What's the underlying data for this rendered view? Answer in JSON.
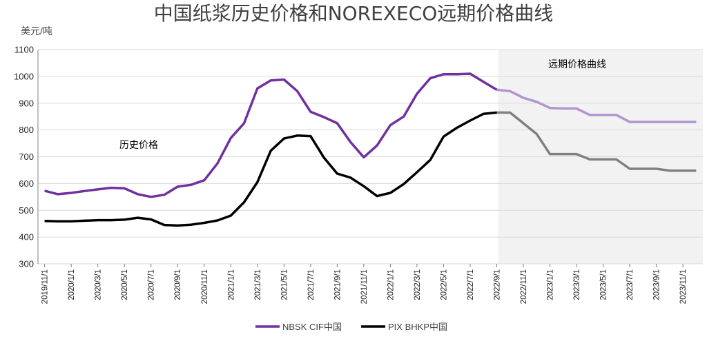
{
  "colors": {
    "nbsk_hist": "#7030A0",
    "nbsk_fwd": "#B195CF",
    "pix_hist": "#000000",
    "pix_fwd": "#808080",
    "forward_bg": "#F2F2F2",
    "grid": "#D9D9D9",
    "axis": "#7F7F7F"
  },
  "chart_data": {
    "type": "line",
    "title": "中国纸浆历史价格和NOREXECO远期价格曲线",
    "ylabel": "美元/吨",
    "ylim": [
      300,
      1100
    ],
    "yticks": [
      300,
      400,
      500,
      600,
      700,
      800,
      900,
      1000,
      1100
    ],
    "grid": "horizontal",
    "legend_position": "bottom",
    "x_tick_labels": [
      "2019/11/1",
      "2020/1/1",
      "2020/3/1",
      "2020/5/1",
      "2020/7/1",
      "2020/9/1",
      "2020/11/1",
      "2021/1/1",
      "2021/3/1",
      "2021/5/1",
      "2021/7/1",
      "2021/9/1",
      "2021/11/1",
      "2022/1/1",
      "2022/3/1",
      "2022/5/1",
      "2022/7/1",
      "2022/9/1",
      "2022/11/1",
      "2023/1/1",
      "2023/3/1",
      "2023/5/1",
      "2023/7/1",
      "2023/9/1",
      "2023/11/1"
    ],
    "x": [
      "2019/11",
      "2019/12",
      "2020/1",
      "2020/2",
      "2020/3",
      "2020/4",
      "2020/5",
      "2020/6",
      "2020/7",
      "2020/8",
      "2020/9",
      "2020/10",
      "2020/11",
      "2020/12",
      "2021/1",
      "2021/2",
      "2021/3",
      "2021/4",
      "2021/5",
      "2021/6",
      "2021/7",
      "2021/8",
      "2021/9",
      "2021/10",
      "2021/11",
      "2021/12",
      "2022/1",
      "2022/2",
      "2022/3",
      "2022/4",
      "2022/5",
      "2022/6",
      "2022/7",
      "2022/8",
      "2022/9",
      "2022/10",
      "2022/11",
      "2022/12",
      "2023/1",
      "2023/2",
      "2023/3",
      "2023/4",
      "2023/5",
      "2023/6",
      "2023/7",
      "2023/8",
      "2023/9",
      "2023/10",
      "2023/11",
      "2023/12"
    ],
    "forward_start": "2022/9",
    "series": [
      {
        "name": "NBSK CIF中国",
        "historical": [
          573,
          560,
          565,
          572,
          578,
          584,
          582,
          560,
          550,
          558,
          588,
          595,
          612,
          675,
          770,
          825,
          955,
          985,
          988,
          945,
          868,
          848,
          825,
          755,
          698,
          742,
          818,
          850,
          935,
          993,
          1008,
          1008,
          1010,
          980,
          950
        ],
        "forward": [
          950,
          945,
          920,
          905,
          882,
          880,
          880,
          856,
          856,
          856,
          830,
          830,
          830,
          830,
          830,
          830
        ]
      },
      {
        "name": "PIX BHKP中国",
        "historical": [
          460,
          459,
          459,
          461,
          463,
          463,
          465,
          472,
          466,
          445,
          443,
          446,
          453,
          462,
          480,
          530,
          605,
          722,
          768,
          779,
          777,
          697,
          637,
          622,
          590,
          553,
          565,
          598,
          642,
          688,
          775,
          808,
          835,
          860,
          865
        ],
        "forward": [
          865,
          865,
          825,
          785,
          710,
          710,
          710,
          690,
          690,
          690,
          655,
          655,
          655,
          648,
          648,
          648
        ]
      }
    ],
    "annotations": {
      "historical": "历史价格",
      "forward": "远期价格曲线"
    }
  }
}
